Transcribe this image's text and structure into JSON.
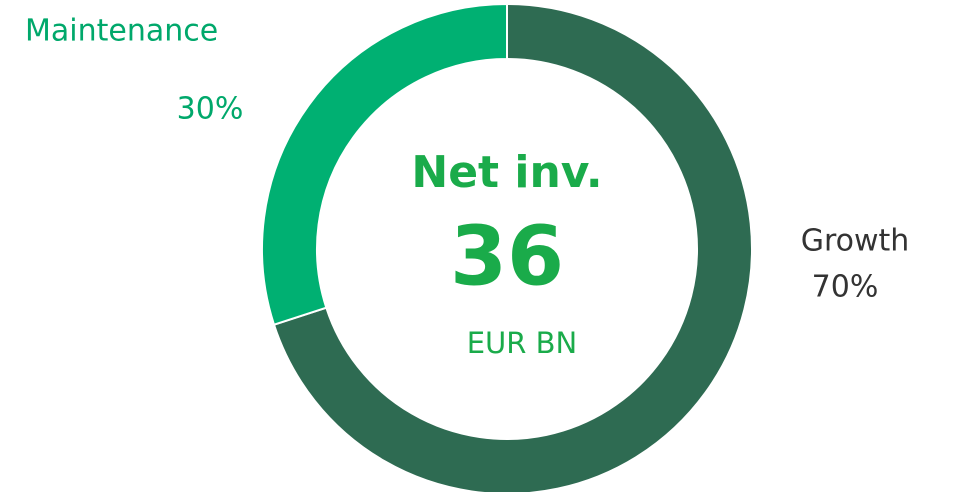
{
  "chart_data": {
    "type": "donut",
    "categories": [
      "Growth",
      "Maintenance"
    ],
    "values": [
      70,
      30
    ],
    "value_labels": [
      "70%",
      "30%"
    ],
    "colors": [
      "#2e6b52",
      "#00b072"
    ],
    "label_colors": [
      "#333333",
      "#00a86b"
    ],
    "center_title": "Net inv.",
    "center_value": 36,
    "center_unit": "EUR BN",
    "center_color": "#1aab4a"
  }
}
